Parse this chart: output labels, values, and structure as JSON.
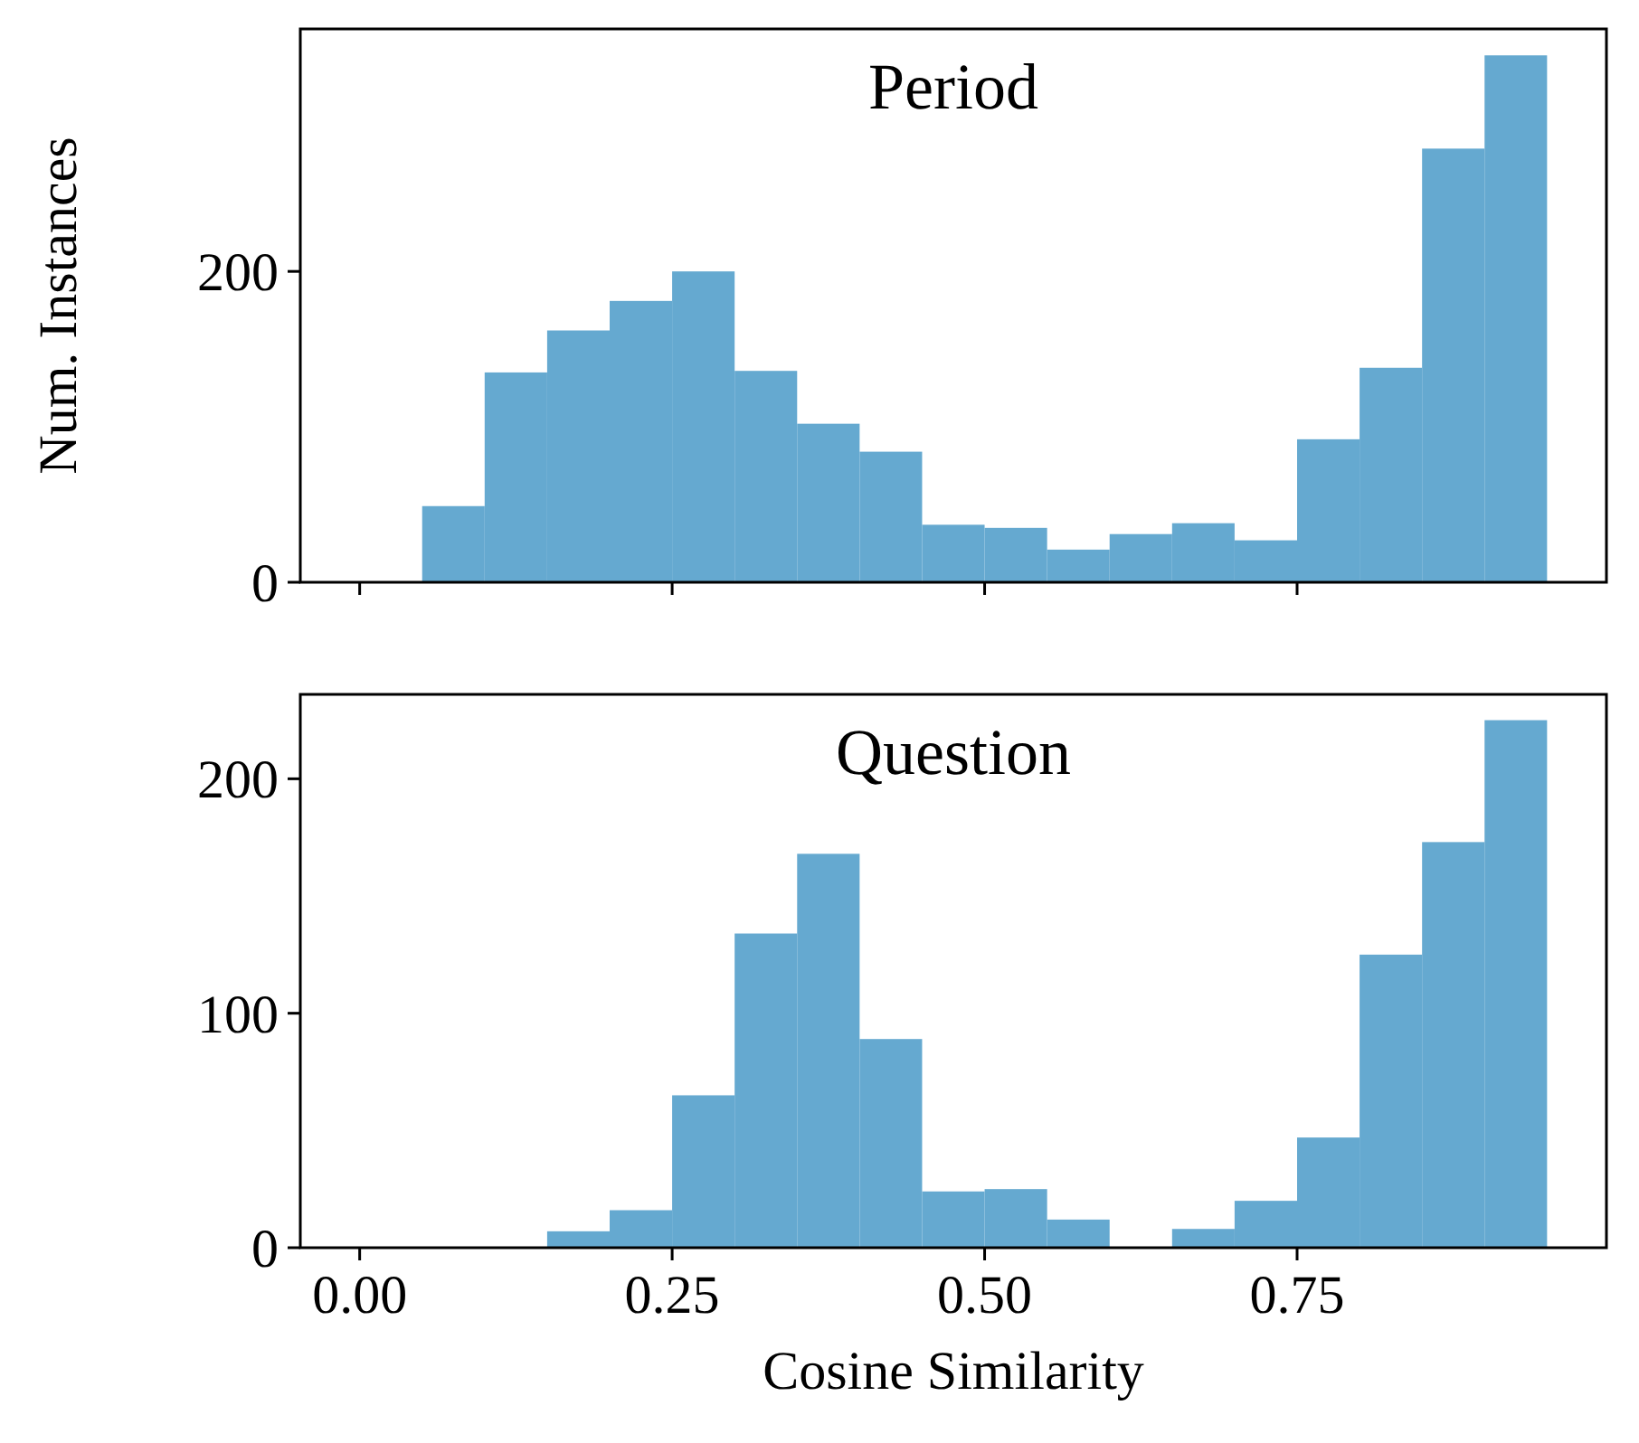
{
  "chart_data": [
    {
      "type": "histogram",
      "title": "Period",
      "ylabel": "Num. Instances",
      "color": "#65a9d0",
      "bins": [
        0,
        0.05,
        0.1,
        0.15,
        0.2,
        0.25,
        0.3,
        0.35,
        0.4,
        0.45,
        0.5,
        0.55,
        0.6,
        0.65,
        0.7,
        0.75,
        0.8,
        0.85,
        0.9,
        0.95
      ],
      "values": [
        0,
        49,
        135,
        162,
        181,
        200,
        136,
        102,
        84,
        37,
        35,
        21,
        31,
        38,
        27,
        92,
        138,
        279,
        339
      ],
      "xlim": [
        -0.0475,
        0.9975
      ],
      "xticks": [
        0,
        0.25,
        0.5,
        0.75
      ],
      "ylim": [
        0,
        356
      ],
      "yticks": [
        0,
        200
      ],
      "tick_labels": "y"
    },
    {
      "type": "histogram",
      "title": "Question",
      "xlabel": "Cosine Similarity",
      "color": "#65a9d0",
      "bins": [
        0,
        0.05,
        0.1,
        0.15,
        0.2,
        0.25,
        0.3,
        0.35,
        0.4,
        0.45,
        0.5,
        0.55,
        0.6,
        0.65,
        0.7,
        0.75,
        0.8,
        0.85,
        0.9,
        0.95
      ],
      "values": [
        0,
        0,
        0,
        7,
        16,
        65,
        134,
        168,
        89,
        24,
        25,
        12,
        0,
        8,
        20,
        47,
        125,
        173,
        225
      ],
      "xlim": [
        -0.0475,
        0.9975
      ],
      "xticks": [
        {
          "value": 0,
          "label": "0.00"
        },
        {
          "value": 0.25,
          "label": "0.25"
        },
        {
          "value": 0.5,
          "label": "0.50"
        },
        {
          "value": 0.75,
          "label": "0.75"
        }
      ],
      "ylim": [
        0,
        236
      ],
      "yticks": [
        0,
        100,
        200
      ]
    }
  ]
}
